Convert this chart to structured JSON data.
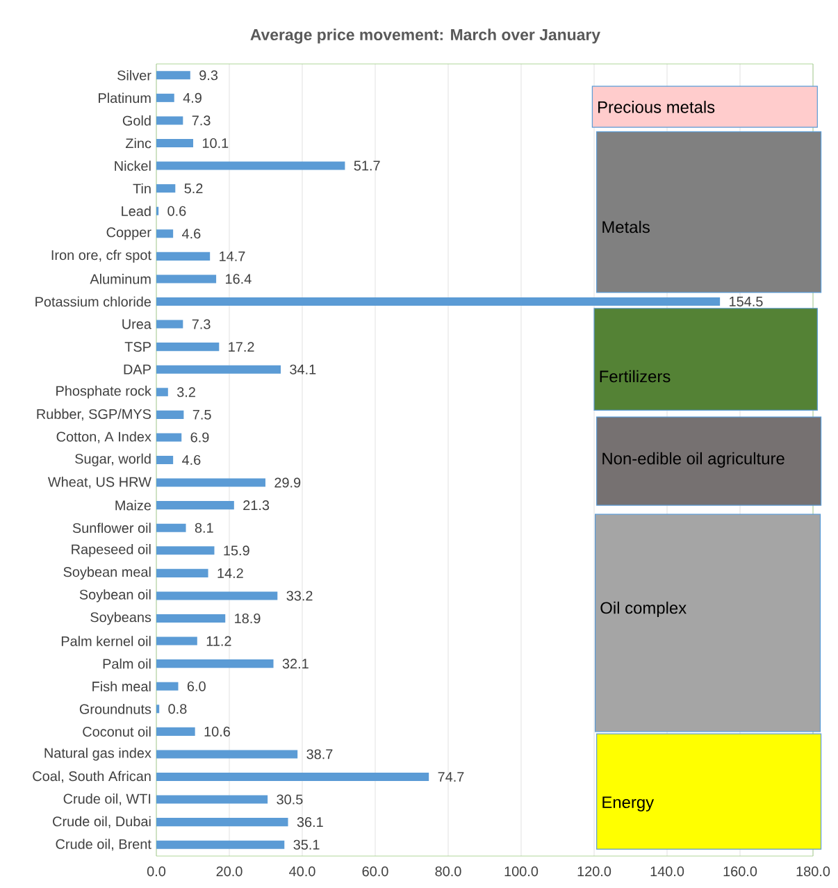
{
  "chart_data": {
    "type": "bar",
    "orientation": "horizontal",
    "title": "Average price movement: March over January",
    "categories": [
      "Silver",
      "Platinum",
      "Gold",
      "Zinc",
      "Nickel",
      "Tin",
      "Lead",
      "Copper",
      "Iron ore, cfr spot",
      "Aluminum",
      "Potassium chloride",
      "Urea",
      "TSP",
      "DAP",
      "Phosphate rock",
      "Rubber, SGP/MYS",
      "Cotton, A Index",
      "Sugar, world",
      "Wheat, US HRW",
      "Maize",
      "Sunflower oil",
      "Rapeseed oil",
      "Soybean meal",
      "Soybean oil",
      "Soybeans",
      "Palm kernel oil",
      "Palm oil",
      "Fish meal",
      "Groundnuts",
      "Coconut oil",
      "Natural gas index",
      "Coal, South African",
      "Crude oil, WTI",
      "Crude oil, Dubai",
      "Crude oil, Brent"
    ],
    "values": [
      9.3,
      4.9,
      7.3,
      10.1,
      51.7,
      5.2,
      0.6,
      4.6,
      14.7,
      16.4,
      154.5,
      7.3,
      17.2,
      34.1,
      3.2,
      7.5,
      6.9,
      4.6,
      29.9,
      21.3,
      8.1,
      15.9,
      14.2,
      33.2,
      18.9,
      11.2,
      32.1,
      6.0,
      0.8,
      10.6,
      38.7,
      74.7,
      30.5,
      36.1,
      35.1
    ],
    "value_labels": [
      "9.3",
      "4.9",
      "7.3",
      "10.1",
      "51.7",
      "5.2",
      "0.6",
      "4.6",
      "14.7",
      "16.4",
      "154.5",
      "7.3",
      "17.2",
      "34.1",
      "3.2",
      "7.5",
      "6.9",
      "4.6",
      "29.9",
      "21.3",
      "8.1",
      "15.9",
      "14.2",
      "33.2",
      "18.9",
      "11.2",
      "32.1",
      "6.0",
      "0.8",
      "10.6",
      "38.7",
      "74.7",
      "30.5",
      "36.1",
      "35.1"
    ],
    "color": "#5b9bd5",
    "xlim": [
      0,
      180
    ],
    "xticks": [
      {
        "value": 0,
        "label": "0.0"
      },
      {
        "value": 20,
        "label": "20.0"
      },
      {
        "value": 40,
        "label": "40.0"
      },
      {
        "value": 60,
        "label": "60.0"
      },
      {
        "value": 80,
        "label": "80.0"
      },
      {
        "value": 100,
        "label": "100.0"
      },
      {
        "value": 120,
        "label": "120.0"
      },
      {
        "value": 140,
        "label": "140.0"
      },
      {
        "value": 160,
        "label": "160.0"
      },
      {
        "value": 180,
        "label": "180.0"
      }
    ],
    "grid": "x",
    "annotations": [
      "Precious metals",
      "Metals",
      "Fertilizers",
      "Non-edible oil agriculture",
      "Oil complex",
      "Energy"
    ]
  }
}
